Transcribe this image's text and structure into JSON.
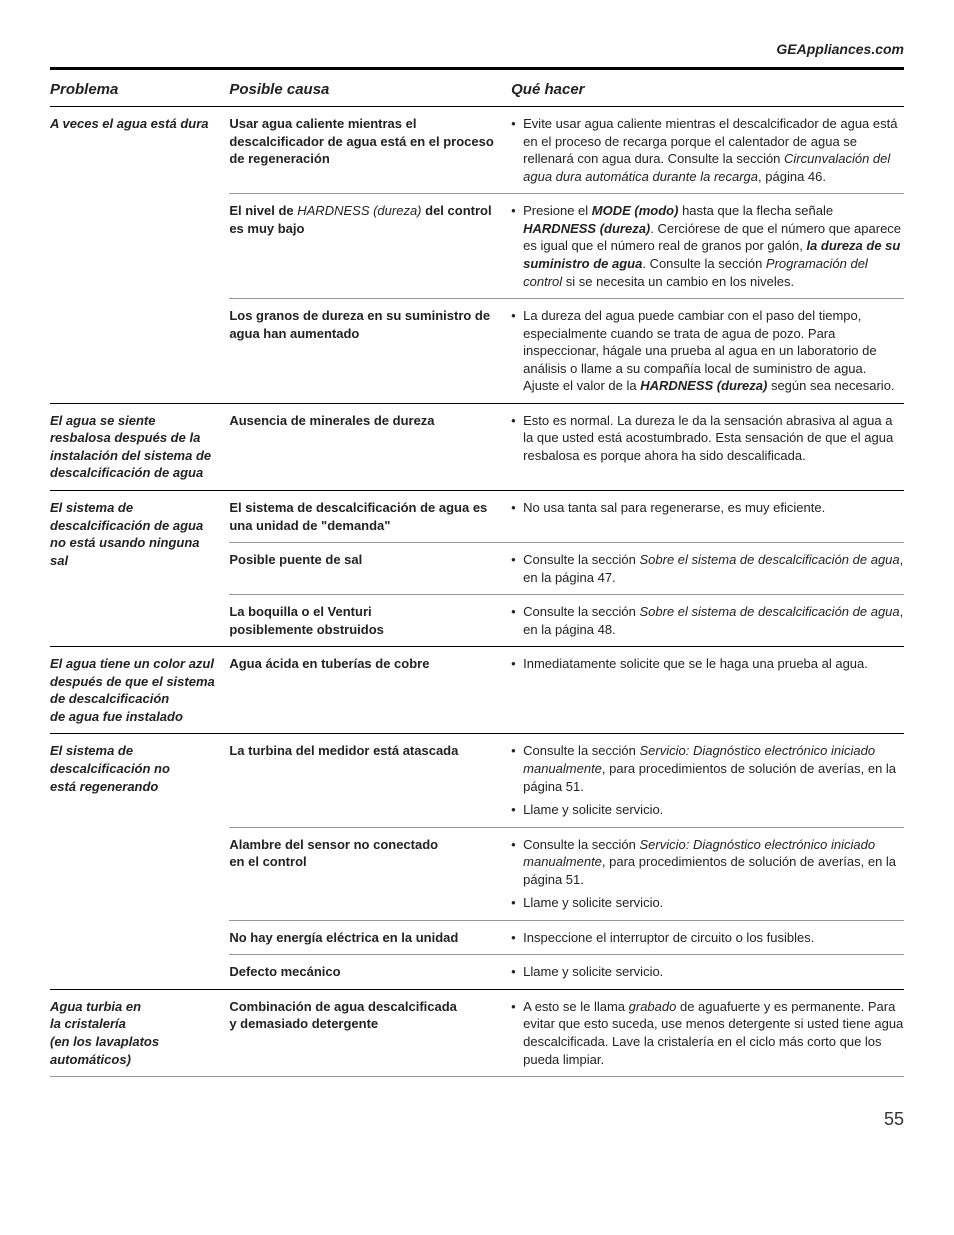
{
  "header": {
    "url": "GEAppliances.com"
  },
  "columns": {
    "problem": "Problema",
    "cause": "Posible causa",
    "remedy": "Qué hacer"
  },
  "page_number": "55",
  "rows": [
    {
      "problem": "A veces el agua está dura",
      "groups": [
        {
          "cause": "Usar agua caliente mientras el descalcificador de agua está en el proceso de regeneración",
          "remedy": "<li>Evite usar agua caliente mientras el descalcificador de agua está en el proceso de recarga porque el calentador de agua se rellenará con agua dura. Consulte la sección <em class='ital'>Circunvalación del agua dura automática durante la recarga</em>, página 46.</li>"
        },
        {
          "cause": "El nivel de <em class='ital'>HARDNESS (dureza)</em> del control es muy bajo",
          "remedy": "<li>Presione el <strong class='bi'>MODE (modo)</strong> hasta que la flecha señale <strong class='bi'>HARDNESS (dureza)</strong>. Cerciórese de que el número que aparece es igual que el número real de granos por galón, <strong class='bi'>la dureza de su suministro de agua</strong>. Consulte la sección <em class='ital'>Programación del control</em> si se necesita un cambio en los niveles.</li>"
        },
        {
          "cause": "Los granos de dureza en su suministro de agua han aumentado",
          "remedy": "<li>La dureza del agua puede cambiar con el paso del tiempo, especialmente cuando se trata de agua de pozo. Para inspeccionar, hágale una prueba al agua en un laboratorio de análisis o llame a su compañía local de suministro de agua. Ajuste el valor de la <strong class='bi'>HARDNESS (dureza)</strong> según sea necesario.</li>",
          "strong": true
        }
      ]
    },
    {
      "problem": "El agua se siente resbalosa después de la instalación del sistema de descalcificación de agua",
      "groups": [
        {
          "cause": "Ausencia de minerales de dureza",
          "remedy": "<li>Esto es normal. La dureza le da la sensación abrasiva al agua a la que usted está acostumbrado. Esta sensación de que el agua resbalosa es porque ahora ha sido descalificada.</li>",
          "strong": true
        }
      ]
    },
    {
      "problem": "El sistema de descalcificación de agua no está usando ninguna sal",
      "groups": [
        {
          "cause": "El sistema de descalcificación de agua es una unidad de \"demanda\"",
          "remedy": "<li>No usa tanta sal para regenerarse, es muy eficiente.</li>"
        },
        {
          "cause": "Posible puente de sal",
          "remedy": "<li>Consulte la sección <em class='ital'>Sobre el sistema de descalcificación de agua</em>, en la página 47.</li>"
        },
        {
          "cause": "La boquilla o el Venturi posiblemente obstruidos",
          "remedy": "<li>Consulte la sección <em class='ital'>Sobre el sistema de descalcificación de agua</em>, en la página 48.</li>",
          "strong": true
        }
      ]
    },
    {
      "problem": "El agua tiene un color azul después de que el sistema de descalcificación de agua fue instalado",
      "groups": [
        {
          "cause": "Agua ácida en tuberías de cobre",
          "remedy": "<li>Inmediatamente solicite que se le haga una prueba al agua.</li>",
          "strong": true
        }
      ]
    },
    {
      "problem": "El sistema de descalcificación no está regenerando",
      "groups": [
        {
          "cause": "La turbina del medidor está atascada",
          "remedy": "<li>Consulte la sección <em class='ital'>Servicio: Diagnóstico electrónico iniciado manualmente</em>, para procedimientos de solución de averías, en la página 51.</li><li>Llame y solicite servicio.</li>"
        },
        {
          "cause": "Alambre del sensor no conectado en el control",
          "remedy": "<li>Consulte la sección <em class='ital'>Servicio: Diagnóstico electrónico iniciado manualmente</em>, para procedimientos de solución de averías, en la página 51.</li><li>Llame y solicite servicio.</li>"
        },
        {
          "cause": "No hay energía eléctrica en la unidad",
          "remedy": "<li>Inspeccione el interruptor de circuito o los fusibles.</li>"
        },
        {
          "cause": "Defecto mecánico",
          "remedy": "<li>Llame y solicite servicio.</li>",
          "strong": true
        }
      ]
    },
    {
      "problem": "Agua turbia en la cristalería (en los lavaplatos automáticos)",
      "groups": [
        {
          "cause": "Combinación de agua descalcificada y demasiado detergente",
          "remedy": "<li>A esto se le llama <em class='ital'>grabado</em> de aguafuerte y es permanente. Para evitar que esto suceda, use menos detergente si usted tiene agua descalcificada. Lave la cristalería en el ciclo más corto que los pueda limpiar.</li>"
        }
      ]
    }
  ]
}
